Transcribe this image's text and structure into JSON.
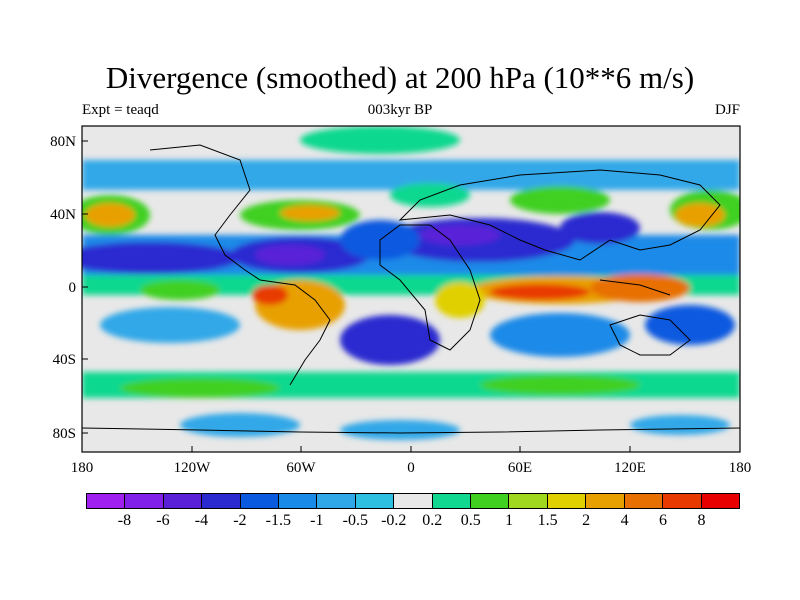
{
  "title": "Divergence (smoothed) at 200 hPa (10**6 m/s)",
  "subtitle_left": "Expt = teaqd",
  "subtitle_center": "003kyr BP",
  "subtitle_right": "DJF",
  "lat_labels": [
    "80N",
    "40N",
    "0",
    "40S",
    "80S"
  ],
  "lon_labels": [
    "180",
    "120W",
    "60W",
    "0",
    "60E",
    "120E",
    "180"
  ],
  "colorbar": {
    "labels": [
      "-8",
      "-6",
      "-4",
      "-2",
      "-1.5",
      "-1",
      "-0.5",
      "-0.2",
      "0.2",
      "0.5",
      "1",
      "1.5",
      "2",
      "4",
      "6",
      "8"
    ],
    "colors": [
      "#a020f0",
      "#8020e8",
      "#5a20d8",
      "#2a2ad0",
      "#0a5ae0",
      "#1a8ae8",
      "#30a8e8",
      "#2ec0e0",
      "#e8e8e8",
      "#10d890",
      "#40d020",
      "#a0d820",
      "#e0d000",
      "#e8a000",
      "#e87000",
      "#e83a00",
      "#e80000"
    ]
  },
  "map_features": [
    "divergence-field",
    "coastlines"
  ]
}
